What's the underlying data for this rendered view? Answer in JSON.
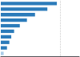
{
  "chart_data": {
    "type": "bar",
    "orientation": "horizontal",
    "categories": [
      null,
      null,
      null,
      null,
      null,
      null,
      null,
      null,
      null,
      null
    ],
    "values": [
      118,
      98,
      72,
      55,
      40,
      28,
      22,
      18,
      13,
      6
    ],
    "colors": [
      "#2b7bba",
      "#2b7bba",
      "#2b7bba",
      "#2b7bba",
      "#2b7bba",
      "#2b7bba",
      "#2b7bba",
      "#2b7bba",
      "#2b7bba",
      "#aacce8"
    ],
    "xlim": [
      0,
      165
    ],
    "vlines": [
      125
    ],
    "tick_labels": false,
    "grid": false
  }
}
